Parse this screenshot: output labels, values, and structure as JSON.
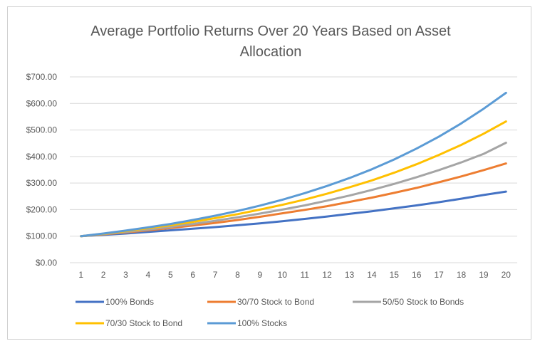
{
  "chart_data": {
    "type": "line",
    "title_lines": [
      "Average Portfolio Returns Over 20 Years Based on Asset",
      "Allocation"
    ],
    "xlabel": "",
    "ylabel": "",
    "x": [
      1,
      2,
      3,
      4,
      5,
      6,
      7,
      8,
      9,
      10,
      11,
      12,
      13,
      14,
      15,
      16,
      17,
      18,
      19,
      20
    ],
    "ylim": [
      0,
      700
    ],
    "yticks": [
      0,
      100,
      200,
      300,
      400,
      500,
      600,
      700
    ],
    "ytick_labels": [
      "$0.00",
      "$100.00",
      "$200.00",
      "$300.00",
      "$400.00",
      "$500.00",
      "$600.00",
      "$700.00"
    ],
    "grid": true,
    "legend_position": "bottom",
    "series": [
      {
        "name": "100% Bonds",
        "color": "#4472C4",
        "values": [
          100,
          105,
          110,
          116,
          122,
          128,
          134,
          141,
          148,
          156,
          165,
          174,
          184,
          194,
          205,
          216,
          228,
          241,
          255,
          268
        ]
      },
      {
        "name": "30/70 Stock to Bond",
        "color": "#ED7D31",
        "values": [
          100,
          107,
          114,
          122,
          131,
          140,
          150,
          161,
          173,
          186,
          199,
          213,
          229,
          245,
          263,
          282,
          303,
          325,
          349,
          374
        ]
      },
      {
        "name": "50/50 Stock to Bonds",
        "color": "#A5A5A5",
        "values": [
          100,
          108,
          116,
          125,
          135,
          146,
          158,
          171,
          185,
          200,
          216,
          234,
          253,
          274,
          297,
          322,
          349,
          378,
          410,
          452
        ]
      },
      {
        "name": "70/30 Stock to Bond",
        "color": "#FFC000",
        "values": [
          100,
          109,
          119,
          130,
          141,
          154,
          168,
          183,
          200,
          218,
          238,
          260,
          284,
          310,
          339,
          371,
          406,
          444,
          486,
          532
        ]
      },
      {
        "name": "100% Stocks",
        "color": "#5B9BD5",
        "values": [
          100,
          110,
          121,
          133,
          146,
          161,
          177,
          195,
          215,
          237,
          262,
          289,
          319,
          352,
          389,
          430,
          475,
          525,
          580,
          640
        ]
      }
    ]
  }
}
